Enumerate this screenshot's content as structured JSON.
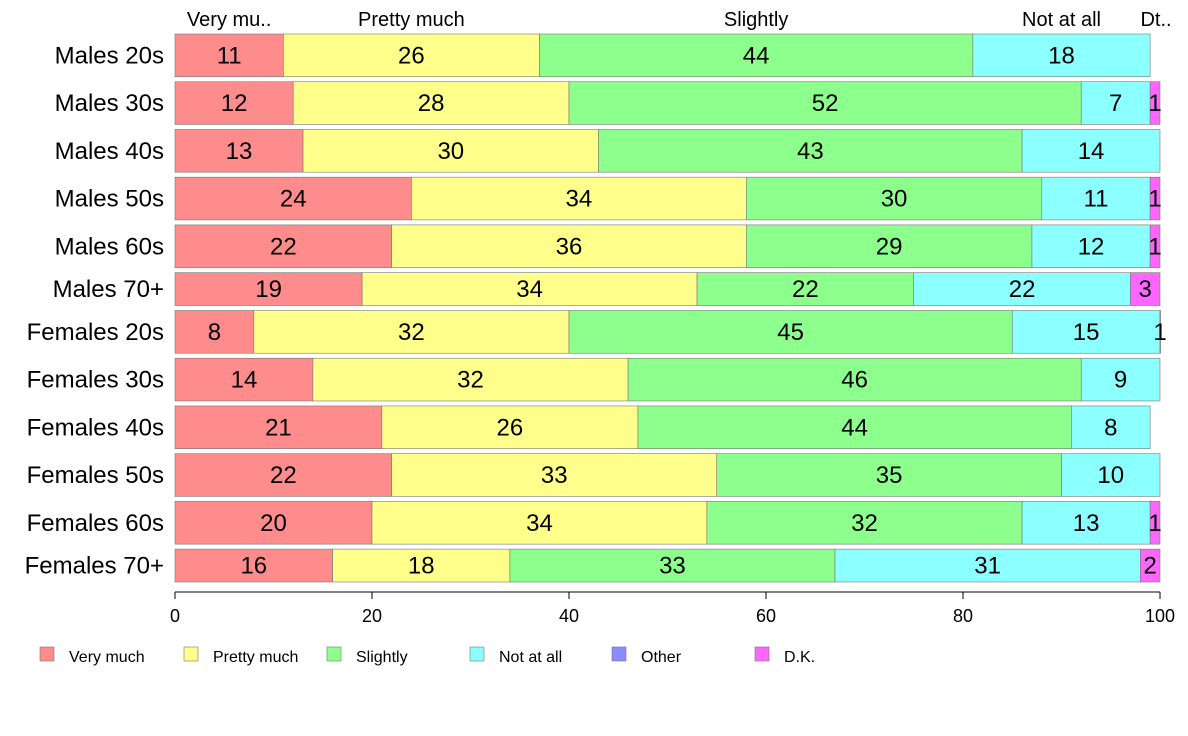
{
  "chart_data": {
    "type": "bar",
    "orientation": "horizontal",
    "stacked": true,
    "categories": [
      "Males 20s",
      "Males 30s",
      "Males 40s",
      "Males 50s",
      "Males 60s",
      "Males 70+",
      "Females 20s",
      "Females 30s",
      "Females 40s",
      "Females 50s",
      "Females 60s",
      "Females 70+"
    ],
    "series": [
      {
        "name": "Very much",
        "color": "#ff8c8c",
        "values": [
          11,
          12,
          13,
          24,
          22,
          19,
          8,
          14,
          21,
          22,
          20,
          16
        ]
      },
      {
        "name": "Pretty much",
        "color": "#ffff8c",
        "values": [
          26,
          28,
          30,
          34,
          36,
          34,
          32,
          32,
          26,
          33,
          34,
          18
        ]
      },
      {
        "name": "Slightly",
        "color": "#8cff8c",
        "values": [
          44,
          52,
          43,
          30,
          29,
          22,
          45,
          46,
          44,
          35,
          32,
          33
        ]
      },
      {
        "name": "Not at all",
        "color": "#8cffff",
        "values": [
          18,
          7,
          14,
          11,
          12,
          22,
          15,
          9,
          8,
          10,
          13,
          31
        ]
      },
      {
        "name": "Other",
        "color": "#8c8cff",
        "values": [
          0,
          0,
          0,
          0,
          0,
          0,
          0,
          0,
          0,
          0,
          0,
          0
        ]
      },
      {
        "name": "D.K.",
        "color": "#ff66ff",
        "values": [
          0,
          1,
          0,
          1,
          1,
          3,
          1,
          0,
          0,
          0,
          1,
          2
        ]
      }
    ],
    "bar_weights": [
      1.3,
      1.3,
      1.3,
      1.3,
      1.3,
      1.0,
      1.3,
      1.3,
      1.3,
      1.3,
      1.3,
      1.0
    ],
    "top_labels": [
      "Very mu..",
      "Pretty much",
      "Slightly",
      "Not at all",
      "Dt.."
    ],
    "xlim": [
      0,
      100
    ],
    "xticks": [
      0,
      20,
      40,
      60,
      80,
      100
    ],
    "legend_position": "bottom",
    "grid": false
  }
}
